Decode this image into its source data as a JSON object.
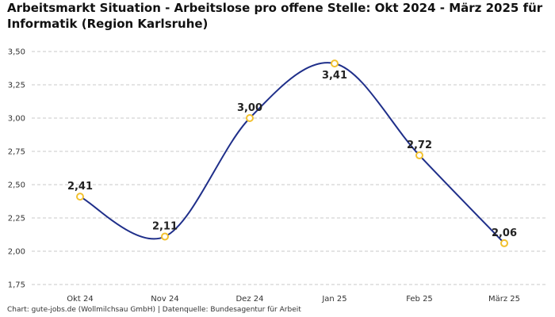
{
  "chart_data": {
    "type": "line",
    "title": "Arbeitsmarkt Situation - Arbeitslose pro offene Stelle: Okt 2024 - März 2025 für Informatik (Region Karlsruhe)",
    "xlabel": "",
    "ylabel": "",
    "categories": [
      "Okt 24",
      "Nov 24",
      "Dez 24",
      "Jan 25",
      "Feb 25",
      "März 25"
    ],
    "series": [
      {
        "name": "Arbeitslose pro offene Stelle",
        "values": [
          2.41,
          2.11,
          3.0,
          3.41,
          2.72,
          2.06
        ],
        "value_labels": [
          "2,41",
          "2,11",
          "3,00",
          "3,41",
          "2,72",
          "2,06"
        ]
      }
    ],
    "ylim": [
      1.75,
      3.5
    ],
    "yticks": [
      1.75,
      2.0,
      2.25,
      2.5,
      2.75,
      3.0,
      3.25,
      3.5
    ],
    "ytick_labels": [
      "1,75",
      "2,00",
      "2,25",
      "2,50",
      "2,75",
      "3,00",
      "3,25",
      "3,50"
    ],
    "grid": true,
    "line_color": "#1f2f8a",
    "marker_color": "#f2c12e"
  },
  "source": "Chart: gute-jobs.de (Wollmilchsau GmbH) | Datenquelle: Bundesagentur für Arbeit"
}
